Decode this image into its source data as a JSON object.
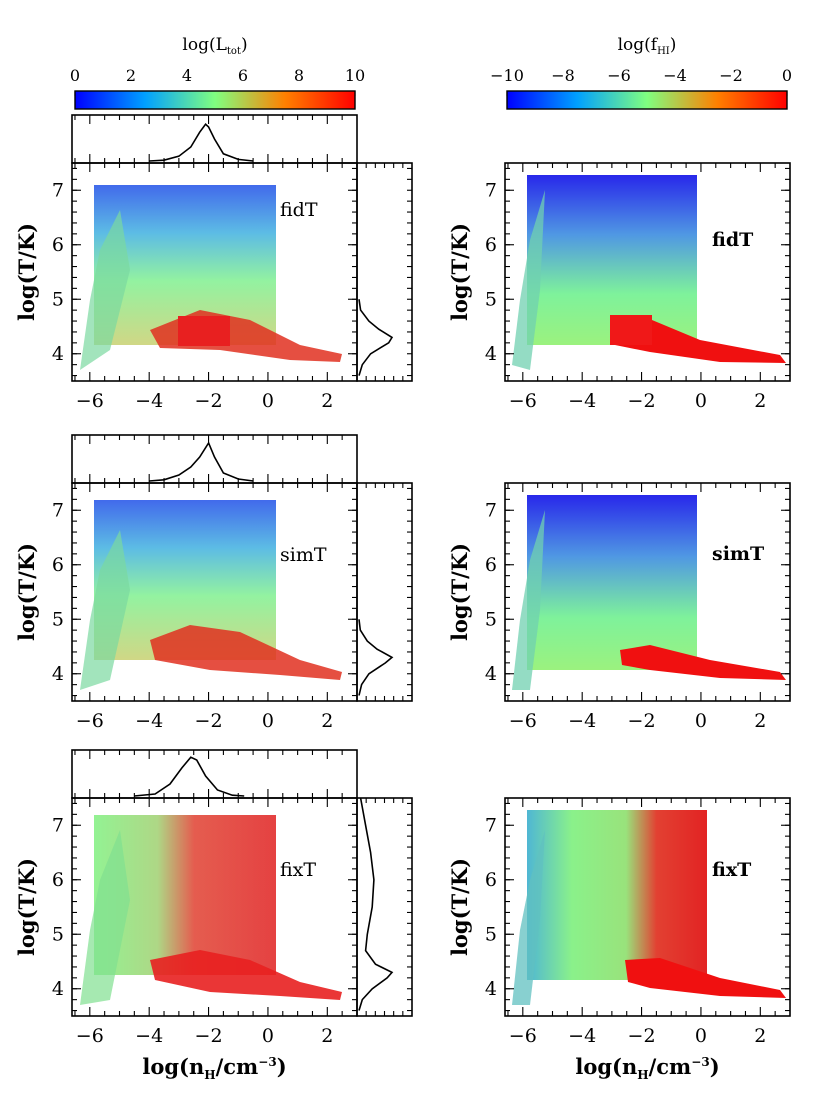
{
  "chart_data": [
    {
      "type": "colorbar",
      "label_text": "log(",
      "label_sym": "L",
      "label_sub": "tot",
      "label_close": ")",
      "ticks": [
        "0",
        "2",
        "4",
        "6",
        "8",
        "10"
      ],
      "range": [
        0,
        10
      ],
      "colormap": [
        "#0000ff",
        "#00a0ff",
        "#80ff80",
        "#ff8000",
        "#ff0000"
      ]
    },
    {
      "type": "colorbar",
      "label_text": "log(",
      "label_sym": "f",
      "label_sub": "HI",
      "label_close": ")",
      "ticks": [
        "-10",
        "-8",
        "-6",
        "-4",
        "-2",
        "0"
      ],
      "range": [
        -10,
        0
      ],
      "colormap": [
        "#0000ff",
        "#00a0ff",
        "#80ff80",
        "#ff8000",
        "#ff0000"
      ]
    },
    {
      "type": "scatter",
      "model": "fidT",
      "color_by": "log(L_tot)",
      "xlim": [
        -6.6,
        3
      ],
      "ylim": [
        3.5,
        7.5
      ],
      "xticks": [
        "-6",
        "-4",
        "-2",
        "0",
        "2"
      ],
      "yticks": [
        "7",
        "6",
        "5",
        "4"
      ],
      "ylabel": "log(T/K)",
      "xlabel": "",
      "hist_x": [
        [
          -4,
          0
        ],
        [
          -3.5,
          0.02
        ],
        [
          -3,
          0.12
        ],
        [
          -2.6,
          0.35
        ],
        [
          -2.3,
          0.72
        ],
        [
          -2.1,
          0.92
        ],
        [
          -2.0,
          0.85
        ],
        [
          -1.8,
          0.55
        ],
        [
          -1.5,
          0.18
        ],
        [
          -1,
          0.04
        ],
        [
          -0.5,
          0
        ]
      ],
      "hist_y": [
        [
          3.6,
          0
        ],
        [
          3.8,
          0.1
        ],
        [
          4.0,
          0.35
        ],
        [
          4.2,
          0.9
        ],
        [
          4.3,
          1.0
        ],
        [
          4.45,
          0.6
        ],
        [
          4.6,
          0.3
        ],
        [
          4.8,
          0.05
        ],
        [
          5.0,
          0
        ]
      ]
    },
    {
      "type": "scatter",
      "model": "fidT",
      "color_by": "log(f_HI)",
      "xlim": [
        -6.6,
        3
      ],
      "ylim": [
        3.5,
        7.5
      ],
      "xticks": [
        "-6",
        "-4",
        "-2",
        "0",
        "2"
      ],
      "yticks": [
        "7",
        "6",
        "5",
        "4"
      ],
      "ylabel": "log(T/K)",
      "xlabel": ""
    },
    {
      "type": "scatter",
      "model": "simT",
      "color_by": "log(L_tot)",
      "xlim": [
        -6.6,
        3
      ],
      "ylim": [
        3.5,
        7.5
      ],
      "xticks": [
        "-6",
        "-4",
        "-2",
        "0",
        "2"
      ],
      "yticks": [
        "7",
        "6",
        "5",
        "4"
      ],
      "ylabel": "log(T/K)",
      "xlabel": "",
      "hist_x": [
        [
          -4,
          0
        ],
        [
          -3.5,
          0.03
        ],
        [
          -3,
          0.15
        ],
        [
          -2.6,
          0.35
        ],
        [
          -2.3,
          0.6
        ],
        [
          -2.0,
          0.95
        ],
        [
          -1.8,
          0.6
        ],
        [
          -1.5,
          0.2
        ],
        [
          -1,
          0.05
        ],
        [
          -0.5,
          0
        ]
      ],
      "hist_y": [
        [
          3.6,
          0
        ],
        [
          3.8,
          0.08
        ],
        [
          4.0,
          0.3
        ],
        [
          4.2,
          0.8
        ],
        [
          4.3,
          1.0
        ],
        [
          4.45,
          0.55
        ],
        [
          4.6,
          0.25
        ],
        [
          4.8,
          0.04
        ],
        [
          5.0,
          0
        ]
      ]
    },
    {
      "type": "scatter",
      "model": "simT",
      "color_by": "log(f_HI)",
      "xlim": [
        -6.6,
        3
      ],
      "ylim": [
        3.5,
        7.5
      ],
      "xticks": [
        "-6",
        "-4",
        "-2",
        "0",
        "2"
      ],
      "yticks": [
        "7",
        "6",
        "5",
        "4"
      ],
      "ylabel": "log(T/K)",
      "xlabel": ""
    },
    {
      "type": "scatter",
      "model": "fixT",
      "color_by": "log(L_tot)",
      "xlim": [
        -6.6,
        3
      ],
      "ylim": [
        3.5,
        7.5
      ],
      "xticks": [
        "-6",
        "-4",
        "-2",
        "0",
        "2"
      ],
      "yticks": [
        "7",
        "6",
        "5",
        "4"
      ],
      "ylabel": "log(T/K)",
      "xlabel": "log(n_H/cm^-3)",
      "hist_x": [
        [
          -4.5,
          0
        ],
        [
          -3.8,
          0.05
        ],
        [
          -3.3,
          0.3
        ],
        [
          -2.9,
          0.7
        ],
        [
          -2.6,
          0.97
        ],
        [
          -2.4,
          0.9
        ],
        [
          -2.1,
          0.5
        ],
        [
          -1.7,
          0.15
        ],
        [
          -1.2,
          0.02
        ],
        [
          -0.8,
          0
        ]
      ],
      "hist_y": [
        [
          3.6,
          0
        ],
        [
          3.8,
          0.1
        ],
        [
          4.0,
          0.4
        ],
        [
          4.2,
          0.85
        ],
        [
          4.3,
          1.0
        ],
        [
          4.45,
          0.5
        ],
        [
          4.7,
          0.2
        ],
        [
          5.0,
          0.25
        ],
        [
          5.5,
          0.4
        ],
        [
          6.0,
          0.45
        ],
        [
          6.5,
          0.35
        ],
        [
          7.0,
          0.2
        ],
        [
          7.5,
          0.05
        ]
      ]
    },
    {
      "type": "scatter",
      "model": "fixT",
      "color_by": "log(f_HI)",
      "xlim": [
        -6.6,
        3
      ],
      "ylim": [
        3.5,
        7.5
      ],
      "xticks": [
        "-6",
        "-4",
        "-2",
        "0",
        "2"
      ],
      "yticks": [
        "7",
        "6",
        "5",
        "4"
      ],
      "ylabel": "log(T/K)",
      "xlabel": "log(n_H/cm^-3)"
    }
  ]
}
